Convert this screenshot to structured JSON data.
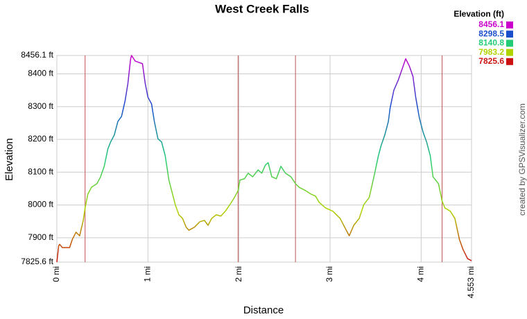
{
  "chart_data": {
    "type": "line",
    "title": "West Creek Falls",
    "xlabel": "Distance",
    "ylabel": "Elevation",
    "legend_title": "Elevation (ft)",
    "credit": "created by GPSVisualizer.com",
    "color_scale": [
      {
        "value": 8456.1,
        "color": "#cc00cc"
      },
      {
        "value": 8298.5,
        "color": "#1a4fcc"
      },
      {
        "value": 8140.8,
        "color": "#22cc77"
      },
      {
        "value": 7983.2,
        "color": "#b0d400"
      },
      {
        "value": 7825.6,
        "color": "#cc1111"
      }
    ],
    "marker_lines": [
      0.31,
      1.99,
      2.62,
      4.23
    ],
    "marker_color": "#c05050",
    "grid": true,
    "xlim": [
      0,
      4.553
    ],
    "ylim": [
      7825.6,
      8456.1
    ],
    "xticks": [
      {
        "value": 0,
        "label": "0 mi"
      },
      {
        "value": 1,
        "label": "1 mi"
      },
      {
        "value": 2,
        "label": "2 mi"
      },
      {
        "value": 3,
        "label": "3 mi"
      },
      {
        "value": 4,
        "label": "4 mi"
      },
      {
        "value": 4.553,
        "label": "4.553 mi"
      }
    ],
    "yticks": [
      {
        "value": 7825.6,
        "label": "7825.6 ft"
      },
      {
        "value": 7900,
        "label": "7900 ft"
      },
      {
        "value": 8000,
        "label": "8000 ft"
      },
      {
        "value": 8100,
        "label": "8100 ft"
      },
      {
        "value": 8200,
        "label": "8200 ft"
      },
      {
        "value": 8300,
        "label": "8300 ft"
      },
      {
        "value": 8400,
        "label": "8400 ft"
      },
      {
        "value": 8456.1,
        "label": "8456.1 ft"
      }
    ],
    "x": [
      0,
      0.02,
      0.03,
      0.06,
      0.14,
      0.17,
      0.21,
      0.25,
      0.29,
      0.31,
      0.34,
      0.38,
      0.44,
      0.48,
      0.52,
      0.56,
      0.59,
      0.63,
      0.67,
      0.71,
      0.75,
      0.78,
      0.81,
      0.82,
      0.86,
      0.9,
      0.94,
      0.97,
      1.0,
      1.04,
      1.07,
      1.11,
      1.15,
      1.19,
      1.23,
      1.26,
      1.3,
      1.34,
      1.38,
      1.42,
      1.45,
      1.51,
      1.57,
      1.62,
      1.66,
      1.7,
      1.75,
      1.8,
      1.85,
      1.9,
      1.95,
      1.99,
      2.01,
      2.06,
      2.1,
      2.15,
      2.21,
      2.25,
      2.29,
      2.32,
      2.36,
      2.41,
      2.46,
      2.51,
      2.57,
      2.62,
      2.66,
      2.73,
      2.79,
      2.84,
      2.88,
      2.95,
      3.03,
      3.11,
      3.17,
      3.21,
      3.26,
      3.32,
      3.37,
      3.43,
      3.49,
      3.53,
      3.56,
      3.6,
      3.64,
      3.66,
      3.7,
      3.75,
      3.79,
      3.83,
      3.87,
      3.91,
      3.94,
      3.98,
      4.02,
      4.06,
      4.1,
      4.13,
      4.19,
      4.23,
      4.26,
      4.32,
      4.37,
      4.42,
      4.46,
      4.51,
      4.553
    ],
    "values": [
      7825.6,
      7875,
      7880,
      7870,
      7870,
      7895,
      7917,
      7906,
      7953,
      7991,
      8033,
      8054,
      8065,
      8086,
      8118,
      8171,
      8192,
      8213,
      8255,
      8270,
      8319,
      8371,
      8446,
      8456.1,
      8439,
      8435,
      8431,
      8371,
      8329,
      8308,
      8255,
      8202,
      8192,
      8150,
      8076,
      8044,
      8001,
      7970,
      7959,
      7932,
      7923,
      7932,
      7949,
      7953,
      7938,
      7959,
      7970,
      7966,
      7981,
      8001,
      8023,
      8044,
      8076,
      8080,
      8097,
      8086,
      8107,
      8097,
      8122,
      8129,
      8086,
      8080,
      8118,
      8097,
      8086,
      8065,
      8054,
      8044,
      8033,
      8027,
      8008,
      7991,
      7981,
      7959,
      7927,
      7906,
      7938,
      7959,
      8001,
      8023,
      8097,
      8150,
      8181,
      8213,
      8255,
      8297,
      8350,
      8382,
      8414,
      8446,
      8424,
      8392,
      8329,
      8266,
      8223,
      8192,
      8150,
      8086,
      8065,
      8012,
      7991,
      7981,
      7959,
      7895,
      7864,
      7836,
      7830
    ]
  }
}
